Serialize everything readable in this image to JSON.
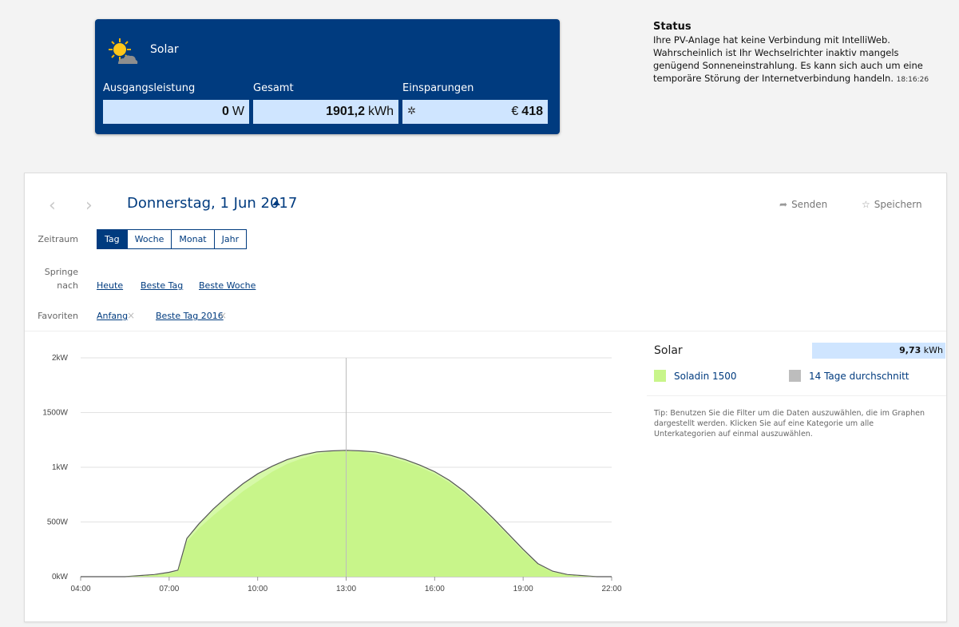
{
  "solar_card": {
    "title": "Solar",
    "icon": "sun-cloud-icon",
    "columns": [
      {
        "label": "Ausgangsleistung",
        "value": "0",
        "unit": "W"
      },
      {
        "label": "Gesamt",
        "value": "1901,2",
        "unit": "kWh"
      },
      {
        "label": "Einsparungen",
        "value": "418",
        "currency": "€",
        "icon": "gear-icon"
      }
    ]
  },
  "status": {
    "title": "Status",
    "text": "Ihre PV-Anlage hat keine Verbindung mit IntelliWeb. Wahrscheinlich ist Ihr Wechselrichter inaktiv mangels genügend Sonneneinstrahlung. Es kann sich auch um eine temporäre Störung der Internetverbindung handeln.",
    "time": "18:16:26"
  },
  "header": {
    "prev_icon": "chevron-left-icon",
    "next_icon": "chevron-right-icon",
    "date": "Donnerstag, 1 Jun 2017",
    "send_label": "Senden",
    "save_label": "Speichern"
  },
  "filters": {
    "zeitraum_label": "Zeitraum",
    "periods": [
      "Tag",
      "Woche",
      "Monat",
      "Jahr"
    ],
    "active_period": "Tag",
    "springe_label_1": "Springe",
    "springe_label_2": "nach",
    "jumps": [
      "Heute",
      "Beste Tag",
      "Beste Woche"
    ],
    "favoriten_label": "Favoriten",
    "favorites": [
      "Anfang",
      "Beste Tag 2016"
    ]
  },
  "legend": {
    "title": "Solar",
    "total_value": "9,73",
    "total_unit": "kWh",
    "items": [
      "Soladin 1500",
      "14 Tage durchschnitt"
    ],
    "tip": "Tip: Benutzen Sie die Filter um die Daten auszuwählen, die im Graphen dargestellt werden. Klicken Sie auf eine Kategorie um alle Unterkategorien auf einmal auszuwählen."
  },
  "colors": {
    "brand": "#003b7f",
    "value_box": "#cfe5ff",
    "series_today": "#c8f58a",
    "series_avg": "#bdbdbd"
  },
  "chart_data": {
    "type": "area",
    "x_ticks": [
      "04:00",
      "07:00",
      "10:00",
      "13:00",
      "16:00",
      "19:00",
      "22:00"
    ],
    "y_ticks": [
      "0kW",
      "500W",
      "1kW",
      "1500W",
      "2kW"
    ],
    "ylim": [
      0,
      2000
    ],
    "xlim_hours": [
      4,
      22
    ],
    "crosshair_x": 13,
    "series": [
      {
        "name": "14 Tage durchschnitt",
        "x": [
          4,
          5,
          5.5,
          6,
          6.5,
          7,
          7.3,
          7.6,
          8,
          8.5,
          9,
          9.5,
          10,
          10.5,
          11,
          11.5,
          12,
          12.5,
          13,
          13.5,
          14,
          14.5,
          15,
          15.5,
          16,
          16.5,
          17,
          17.5,
          18,
          18.5,
          19,
          19.5,
          20,
          20.5,
          21,
          21.5,
          22
        ],
        "values": [
          0,
          0,
          0,
          10,
          20,
          40,
          60,
          350,
          480,
          620,
          740,
          850,
          940,
          1010,
          1070,
          1110,
          1140,
          1150,
          1155,
          1150,
          1140,
          1110,
          1070,
          1020,
          960,
          880,
          780,
          660,
          530,
          390,
          250,
          120,
          50,
          20,
          10,
          0,
          0
        ]
      },
      {
        "name": "Soladin 1500",
        "x": [
          4,
          5,
          5.5,
          6,
          6.5,
          7,
          7.3,
          7.6,
          8,
          8.5,
          9,
          9.5,
          10,
          10.5,
          11,
          11.5,
          12,
          12.5,
          13,
          13.5,
          14,
          14.5,
          15,
          15.5,
          16,
          16.5,
          17,
          17.5,
          18,
          18.5,
          19,
          19.5,
          20,
          20.5,
          21,
          21.5,
          22
        ],
        "values": [
          0,
          0,
          0,
          5,
          15,
          30,
          50,
          320,
          440,
          560,
          670,
          780,
          870,
          960,
          1030,
          1080,
          1120,
          1140,
          1150,
          1140,
          1120,
          1090,
          1050,
          1000,
          940,
          860,
          760,
          640,
          510,
          370,
          230,
          110,
          40,
          15,
          5,
          0,
          0
        ]
      }
    ]
  }
}
